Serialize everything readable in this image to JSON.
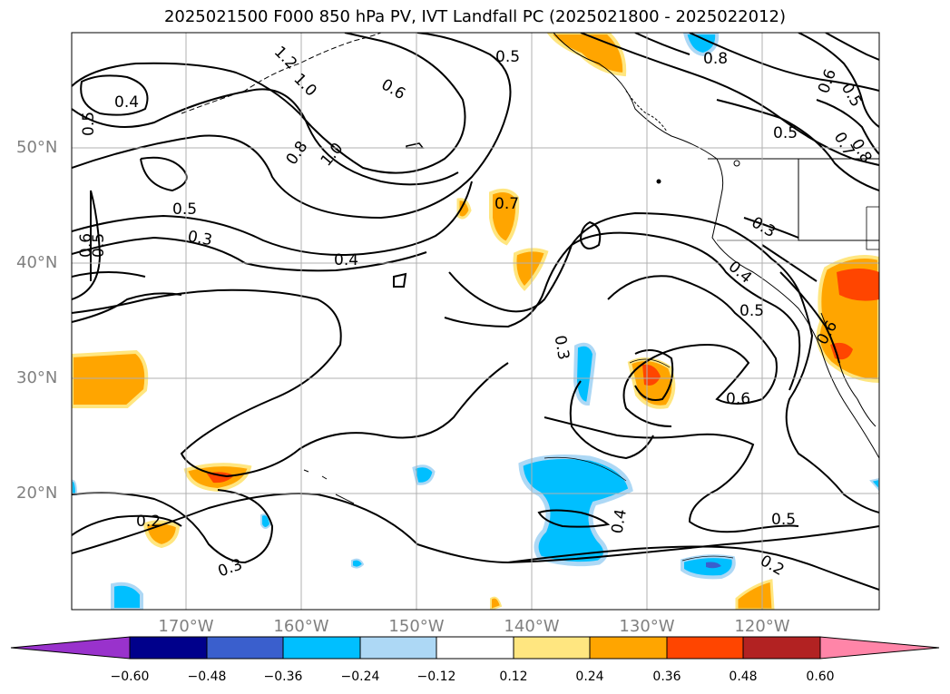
{
  "title": "2025021500 F000 850 hPa PV, IVT Landfall PC (2025021800 - 2025022012)",
  "map": {
    "lat_labels": [
      "50°N",
      "40°N",
      "30°N",
      "20°N"
    ],
    "lon_labels": [
      "170°W",
      "160°W",
      "150°W",
      "140°W",
      "130°W",
      "120°W"
    ],
    "contour_labels": [
      "0.4",
      "0.5",
      "0.5",
      "0.3",
      "0.4",
      "0.8",
      "1.0",
      "0.6",
      "0.5",
      "0.7",
      "0.3",
      "0.6",
      "0.8",
      "0.5",
      "0.3",
      "0.4",
      "0.5",
      "0.6",
      "0.2",
      "0.3",
      "0.4",
      "0.5",
      "0.2",
      "0.6",
      "0.5",
      "1.2",
      "1.0",
      "0.7",
      "0.8",
      "0.6",
      "0.5"
    ]
  },
  "colorbar": {
    "ticks": [
      "−0.60",
      "−0.48",
      "−0.36",
      "−0.24",
      "−0.12",
      "0.12",
      "0.24",
      "0.36",
      "0.48",
      "0.60"
    ],
    "colors": [
      "#9932cc",
      "#00008b",
      "#3a5fcd",
      "#00bfff",
      "#add8f5",
      "#ffffff",
      "#ffe680",
      "#ffa500",
      "#ff4500",
      "#b22222",
      "#ff85a8"
    ]
  }
}
